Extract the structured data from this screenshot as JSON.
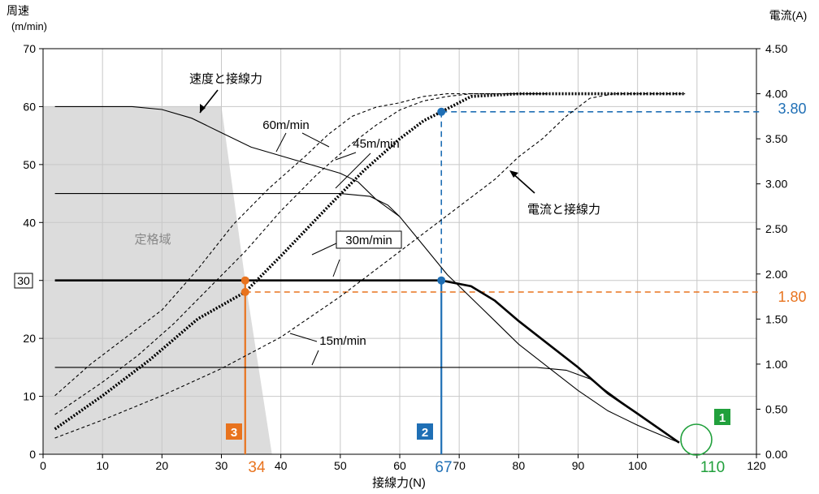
{
  "chart_data": {
    "type": "line",
    "title": "",
    "xlabel": "接線力(N)",
    "ylabel_left": "周速",
    "ylabel_left_unit": "(m/min)",
    "ylabel_right": "電流(A)",
    "xlim": [
      0,
      120
    ],
    "ylim_left": [
      0,
      70
    ],
    "ylim_right": [
      0,
      4.5
    ],
    "x_ticks": [
      "0",
      "10",
      "20",
      "30",
      "40",
      "50",
      "60",
      "70",
      "80",
      "90",
      "100",
      "110",
      "120"
    ],
    "y_left_ticks": [
      "0",
      "10",
      "20",
      "30",
      "40",
      "50",
      "60",
      "70"
    ],
    "y_right_ticks": [
      "0.00",
      "0.50",
      "1.00",
      "1.50",
      "2.00",
      "2.50",
      "3.00",
      "3.50",
      "4.00",
      "4.50"
    ],
    "grid": true,
    "rated_region_label": "定格域",
    "annotations": {
      "speed_curve": "速度と接線力",
      "current_curve": "電流と接線力",
      "curve_60": "60m/min",
      "curve_45": "45m/min",
      "curve_30": "30m/min",
      "curve_15": "15m/min"
    },
    "markers": {
      "step1_badge": "1",
      "step1_value": "110",
      "step2_badge": "2",
      "step2_value": "67",
      "step3_badge": "3",
      "step3_value": "34",
      "speed_box_value": "30",
      "current_blue_value": "3.80",
      "current_orange_value": "1.80"
    },
    "colors": {
      "blue": "#1f6fb5",
      "orange": "#e8731e",
      "green": "#21a03c",
      "region": "#dcdcdc"
    },
    "series": [
      {
        "axis": "left",
        "style": "thin",
        "values": [
          [
            2,
            60
          ],
          [
            15,
            60
          ],
          [
            20,
            59.5
          ],
          [
            25,
            58
          ],
          [
            30,
            55.5
          ],
          [
            35,
            53
          ],
          [
            40,
            51.5
          ],
          [
            45,
            50
          ],
          [
            50,
            48.5
          ],
          [
            53,
            47
          ],
          [
            56,
            44
          ],
          [
            60,
            41
          ],
          [
            64,
            36
          ],
          [
            68,
            31
          ],
          [
            72,
            27
          ],
          [
            76,
            23
          ],
          [
            80,
            19
          ],
          [
            85,
            15
          ],
          [
            90,
            11
          ],
          [
            95,
            7.5
          ],
          [
            100,
            5
          ],
          [
            107,
            2
          ]
        ]
      },
      {
        "axis": "left",
        "style": "thin",
        "values": [
          [
            2,
            45
          ],
          [
            40,
            45
          ],
          [
            50,
            45
          ],
          [
            55,
            44.5
          ],
          [
            58,
            43
          ],
          [
            60,
            41
          ]
        ]
      },
      {
        "axis": "left",
        "style": "bold",
        "values": [
          [
            2,
            30
          ],
          [
            67,
            30
          ],
          [
            72,
            29
          ],
          [
            76,
            26.5
          ],
          [
            80,
            23
          ],
          [
            85,
            19
          ],
          [
            90,
            15
          ],
          [
            95,
            10.5
          ],
          [
            100,
            7
          ],
          [
            107,
            2
          ]
        ]
      },
      {
        "axis": "left",
        "style": "thin",
        "values": [
          [
            2,
            15
          ],
          [
            83,
            15
          ],
          [
            88,
            14.5
          ],
          [
            92,
            13
          ],
          [
            96,
            10
          ],
          [
            100,
            7
          ],
          [
            107,
            2
          ]
        ]
      },
      {
        "axis": "right",
        "style": "dashed",
        "values": [
          [
            2,
            0.65
          ],
          [
            8,
            1.0
          ],
          [
            14,
            1.3
          ],
          [
            20,
            1.6
          ],
          [
            26,
            2.05
          ],
          [
            32,
            2.55
          ],
          [
            38,
            2.95
          ],
          [
            44,
            3.3
          ],
          [
            48,
            3.55
          ],
          [
            52,
            3.75
          ],
          [
            56,
            3.85
          ],
          [
            60,
            3.9
          ],
          [
            64,
            3.97
          ],
          [
            68,
            4.0
          ],
          [
            85,
            4.0
          ]
        ]
      },
      {
        "axis": "right",
        "style": "dashed",
        "values": [
          [
            2,
            0.44
          ],
          [
            10,
            0.8
          ],
          [
            16,
            1.1
          ],
          [
            22,
            1.45
          ],
          [
            28,
            1.85
          ],
          [
            34,
            2.25
          ],
          [
            40,
            2.7
          ],
          [
            46,
            3.1
          ],
          [
            52,
            3.45
          ],
          [
            56,
            3.65
          ],
          [
            60,
            3.82
          ],
          [
            64,
            3.92
          ],
          [
            68,
            3.97
          ],
          [
            72,
            4.0
          ],
          [
            85,
            4.0
          ]
        ]
      },
      {
        "axis": "right",
        "style": "dotted-bold",
        "values": [
          [
            2,
            0.28
          ],
          [
            10,
            0.65
          ],
          [
            18,
            1.05
          ],
          [
            26,
            1.5
          ],
          [
            34,
            1.8
          ],
          [
            40,
            2.2
          ],
          [
            48,
            2.75
          ],
          [
            54,
            3.15
          ],
          [
            60,
            3.5
          ],
          [
            64,
            3.7
          ],
          [
            67,
            3.8
          ],
          [
            72,
            3.97
          ],
          [
            80,
            4.0
          ],
          [
            108,
            4.0
          ]
        ]
      },
      {
        "axis": "right",
        "style": "dashed",
        "values": [
          [
            2,
            0.18
          ],
          [
            10,
            0.38
          ],
          [
            20,
            0.65
          ],
          [
            30,
            0.95
          ],
          [
            40,
            1.3
          ],
          [
            50,
            1.75
          ],
          [
            60,
            2.25
          ],
          [
            70,
            2.75
          ],
          [
            76,
            3.05
          ],
          [
            80,
            3.3
          ],
          [
            84,
            3.5
          ],
          [
            88,
            3.75
          ],
          [
            92,
            3.95
          ],
          [
            96,
            4.0
          ],
          [
            108,
            4.0
          ]
        ]
      }
    ]
  }
}
